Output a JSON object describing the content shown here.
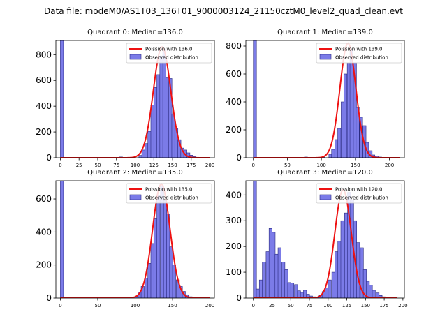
{
  "figure_title": "Data file: modeM0/AS1T03_136T01_9000003124_21150cztM0_level2_quad_clean.evt",
  "colors": {
    "hist": "#7b7be8",
    "hist_edge": "#2a2a80",
    "poisson": "#ee1111"
  },
  "chart_data": [
    {
      "type": "bar",
      "title": "Quadrant 0: Median=136.0",
      "legend": {
        "line": "Poission with 136.0",
        "hist": "Observed distribution",
        "placement": "top-right"
      },
      "xlim": [
        -6,
        206
      ],
      "ylim": [
        0,
        910
      ],
      "xticks": [
        0,
        25,
        50,
        75,
        100,
        125,
        150,
        175,
        200
      ],
      "yticks": [
        0,
        200,
        400,
        600,
        800
      ],
      "bin_width": 4.2,
      "bins": [
        [
          0,
          910
        ],
        [
          79,
          6
        ],
        [
          105,
          18
        ],
        [
          109,
          60
        ],
        [
          113,
          110
        ],
        [
          117,
          205
        ],
        [
          121,
          410
        ],
        [
          125,
          545
        ],
        [
          129,
          645
        ],
        [
          133,
          790
        ],
        [
          137,
          840
        ],
        [
          141,
          620
        ],
        [
          145,
          615
        ],
        [
          149,
          340
        ],
        [
          153,
          230
        ],
        [
          157,
          140
        ],
        [
          161,
          75
        ],
        [
          165,
          60
        ],
        [
          169,
          38
        ],
        [
          173,
          20
        ],
        [
          177,
          10
        ],
        [
          181,
          4
        ]
      ],
      "poisson_mean": 136.0,
      "poisson_peak": 860,
      "poisson_sigma": 11.66,
      "poisson_x": [
        0,
        200
      ]
    },
    {
      "type": "bar",
      "title": "Quadrant 1: Median=139.0",
      "legend": {
        "line": "Poission with 139.0",
        "hist": "Observed distribution",
        "placement": "top-right"
      },
      "xlim": [
        -11,
        222
      ],
      "ylim": [
        0,
        840
      ],
      "xticks": [
        0,
        50,
        100,
        150,
        200
      ],
      "yticks": [
        0,
        200,
        400,
        600,
        800
      ],
      "bin_width": 4.6,
      "bins": [
        [
          0,
          840
        ],
        [
          75,
          5
        ],
        [
          100,
          5
        ],
        [
          111,
          25
        ],
        [
          115,
          60
        ],
        [
          120,
          130
        ],
        [
          124,
          210
        ],
        [
          129,
          400
        ],
        [
          133,
          600
        ],
        [
          138,
          680
        ],
        [
          142,
          770
        ],
        [
          147,
          680
        ],
        [
          151,
          360
        ],
        [
          156,
          290
        ],
        [
          161,
          230
        ],
        [
          165,
          110
        ],
        [
          170,
          50
        ],
        [
          174,
          20
        ],
        [
          179,
          12
        ],
        [
          184,
          5
        ]
      ],
      "poisson_mean": 139.0,
      "poisson_peak": 820,
      "poisson_sigma": 11.79,
      "poisson_x": [
        0,
        215
      ]
    },
    {
      "type": "bar",
      "title": "Quadrant 2: Median=135.0",
      "legend": {
        "line": "Poission with 135.0",
        "hist": "Observed distribution",
        "placement": "top-right"
      },
      "xlim": [
        -6,
        206
      ],
      "ylim": [
        0,
        710
      ],
      "xticks": [
        0,
        50,
        100,
        150,
        200
      ],
      "yticks": [
        0,
        200,
        400,
        600
      ],
      "bin_width": 4.2,
      "bins": [
        [
          0,
          710
        ],
        [
          79,
          4
        ],
        [
          100,
          10
        ],
        [
          104,
          35
        ],
        [
          108,
          70
        ],
        [
          113,
          120
        ],
        [
          117,
          210
        ],
        [
          121,
          330
        ],
        [
          125,
          480
        ],
        [
          129,
          620
        ],
        [
          134,
          680
        ],
        [
          138,
          590
        ],
        [
          142,
          510
        ],
        [
          146,
          310
        ],
        [
          150,
          200
        ],
        [
          155,
          110
        ],
        [
          159,
          70
        ],
        [
          163,
          40
        ],
        [
          167,
          20
        ],
        [
          172,
          8
        ]
      ],
      "poisson_mean": 135.0,
      "poisson_peak": 690,
      "poisson_sigma": 11.62,
      "poisson_x": [
        0,
        200
      ]
    },
    {
      "type": "bar",
      "title": "Quadrant 3: Median=120.0",
      "legend": {
        "line": "Poission with 120.0",
        "hist": "Observed distribution",
        "placement": "top-right"
      },
      "xlim": [
        -10,
        202
      ],
      "ylim": [
        0,
        455
      ],
      "xticks": [
        0,
        25,
        50,
        75,
        100,
        125,
        150,
        175,
        200
      ],
      "yticks": [
        0,
        100,
        200,
        300,
        400
      ],
      "bin_width": 4.2,
      "bins": [
        [
          0,
          455
        ],
        [
          4,
          35
        ],
        [
          8,
          70
        ],
        [
          12,
          140
        ],
        [
          17,
          180
        ],
        [
          21,
          270
        ],
        [
          25,
          255
        ],
        [
          29,
          170
        ],
        [
          33,
          195
        ],
        [
          38,
          140
        ],
        [
          42,
          110
        ],
        [
          46,
          60
        ],
        [
          50,
          58
        ],
        [
          55,
          52
        ],
        [
          59,
          28
        ],
        [
          63,
          22
        ],
        [
          67,
          30
        ],
        [
          71,
          15
        ],
        [
          75,
          8
        ],
        [
          80,
          5
        ],
        [
          84,
          3
        ],
        [
          88,
          10
        ],
        [
          92,
          25
        ],
        [
          96,
          40
        ],
        [
          100,
          70
        ],
        [
          105,
          100
        ],
        [
          109,
          180
        ],
        [
          113,
          220
        ],
        [
          117,
          300
        ],
        [
          122,
          330
        ],
        [
          126,
          410
        ],
        [
          130,
          380
        ],
        [
          134,
          300
        ],
        [
          138,
          215
        ],
        [
          143,
          195
        ],
        [
          147,
          110
        ],
        [
          151,
          65
        ],
        [
          155,
          50
        ],
        [
          159,
          30
        ],
        [
          164,
          20
        ],
        [
          168,
          10
        ],
        [
          172,
          5
        ],
        [
          176,
          2
        ]
      ],
      "poisson_mean": 120.0,
      "poisson_peak": 420,
      "poisson_sigma": 10.95,
      "poisson_x": [
        0,
        192
      ]
    }
  ]
}
